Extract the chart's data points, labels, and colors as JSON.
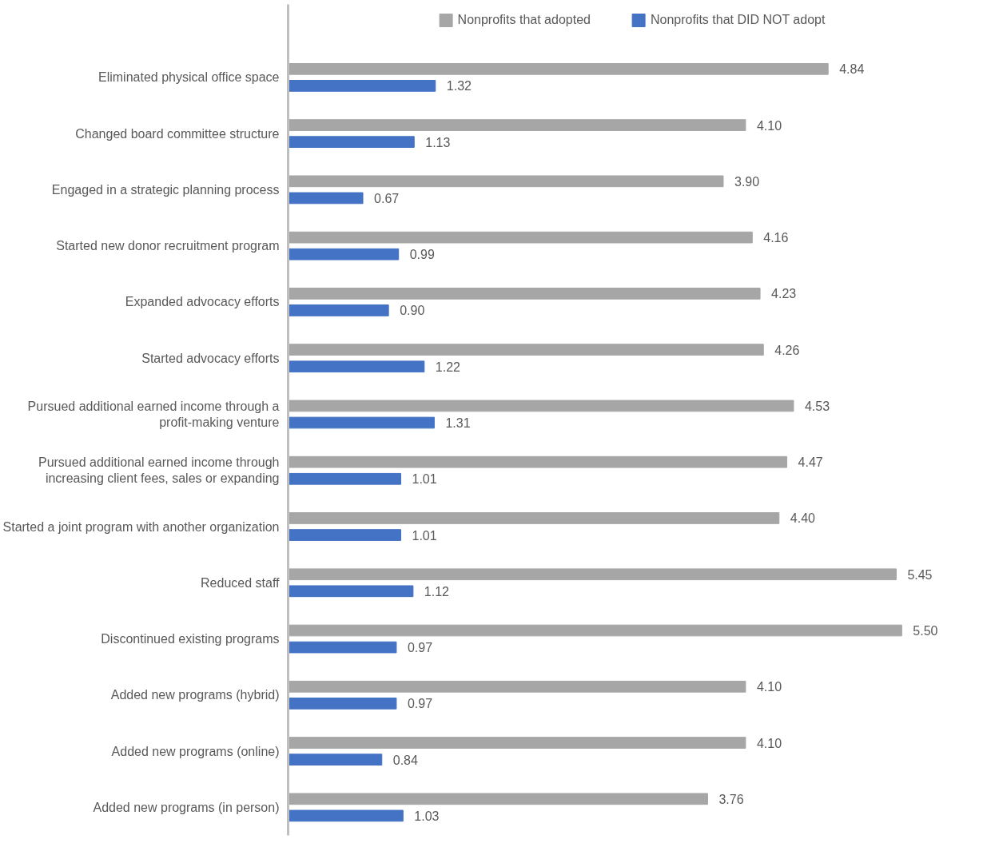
{
  "chart_data": {
    "type": "bar",
    "orientation": "horizontal",
    "categories": [
      "Eliminated physical office space",
      "Changed board committee structure",
      "Engaged in a strategic planning process",
      "Started new donor recruitment program",
      "Expanded advocacy efforts",
      "Started advocacy efforts",
      "Pursued additional earned income through a profit-making venture",
      "Pursued additional earned income through increasing client fees, sales or expanding",
      "Started a joint program with another organization",
      "Reduced staff",
      "Discontinued existing programs",
      "Added new programs (hybrid)",
      "Added new programs (online)",
      "Added new programs (in person)"
    ],
    "series": [
      {
        "name": "Nonprofits that adopted",
        "color": "#a6a6a6",
        "values": [
          4.84,
          4.1,
          3.9,
          4.16,
          4.23,
          4.26,
          4.53,
          4.47,
          4.4,
          5.45,
          5.5,
          4.1,
          4.1,
          3.76
        ],
        "value_labels": [
          "4.84",
          "4.10",
          "3.90",
          "4.16",
          "4.23",
          "4.26",
          "4.53",
          "4.47",
          "4.40",
          "5.45",
          "5.50",
          "4.10",
          "4.10",
          "3.76"
        ]
      },
      {
        "name": "Nonprofits that DID NOT adopt",
        "color": "#4472c4",
        "values": [
          1.32,
          1.13,
          0.67,
          0.99,
          0.9,
          1.22,
          1.31,
          1.01,
          1.01,
          1.12,
          0.97,
          0.97,
          0.84,
          1.03
        ],
        "value_labels": [
          "1.32",
          "1.13",
          "0.67",
          "0.99",
          "0.90",
          "1.22",
          "1.31",
          "1.01",
          "1.01",
          "1.12",
          "0.97",
          "0.97",
          "0.84",
          "1.03"
        ]
      }
    ],
    "legend": "top"
  }
}
